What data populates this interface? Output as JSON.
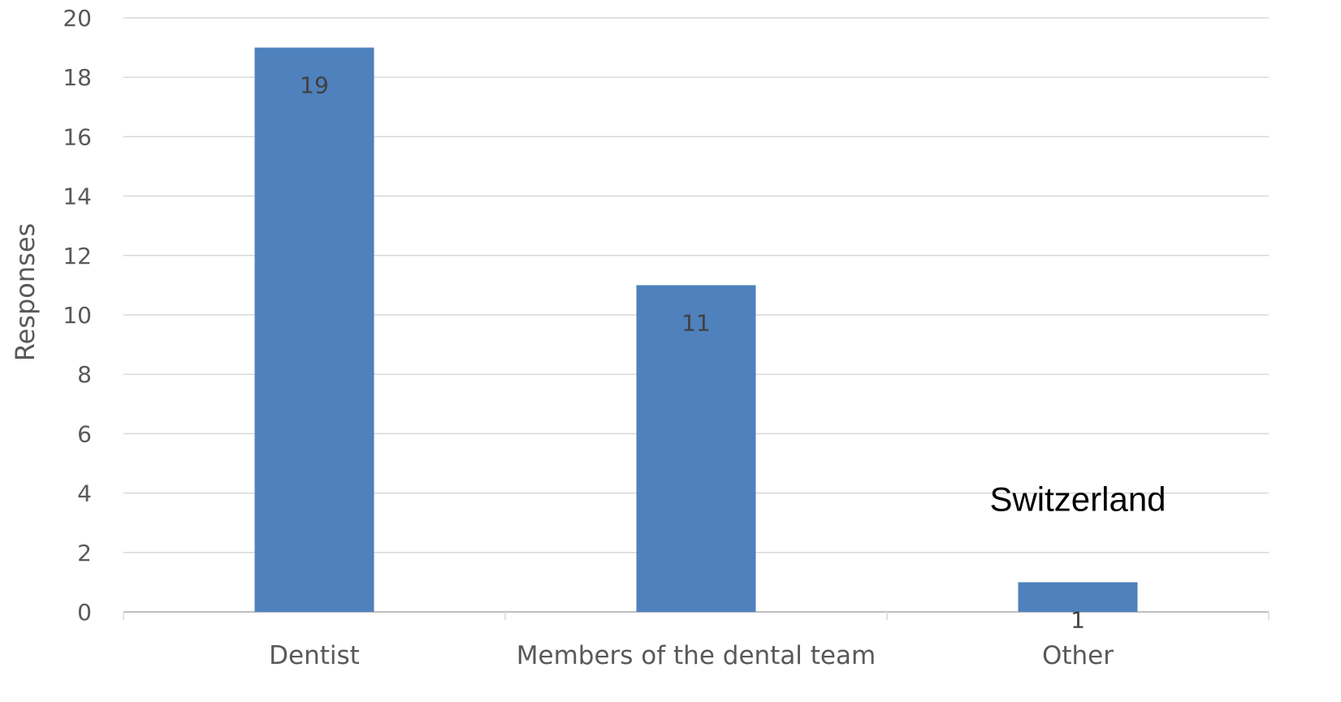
{
  "chart_data": {
    "type": "bar",
    "title": "",
    "xlabel": "",
    "ylabel": "Responses",
    "categories": [
      "Dentist",
      "Members of the dental team",
      "Other"
    ],
    "values": [
      19,
      11,
      1
    ],
    "data_labels": [
      "19",
      "11",
      "1"
    ],
    "ylim": [
      0,
      20
    ],
    "yticks": [
      0,
      2,
      4,
      6,
      8,
      10,
      12,
      14,
      16,
      18,
      20
    ],
    "grid": true,
    "legend": "none",
    "bar_color": "#4f81bd",
    "annotations": [
      {
        "text": "Switzerland",
        "category": "Other",
        "y": 3.4
      }
    ]
  }
}
